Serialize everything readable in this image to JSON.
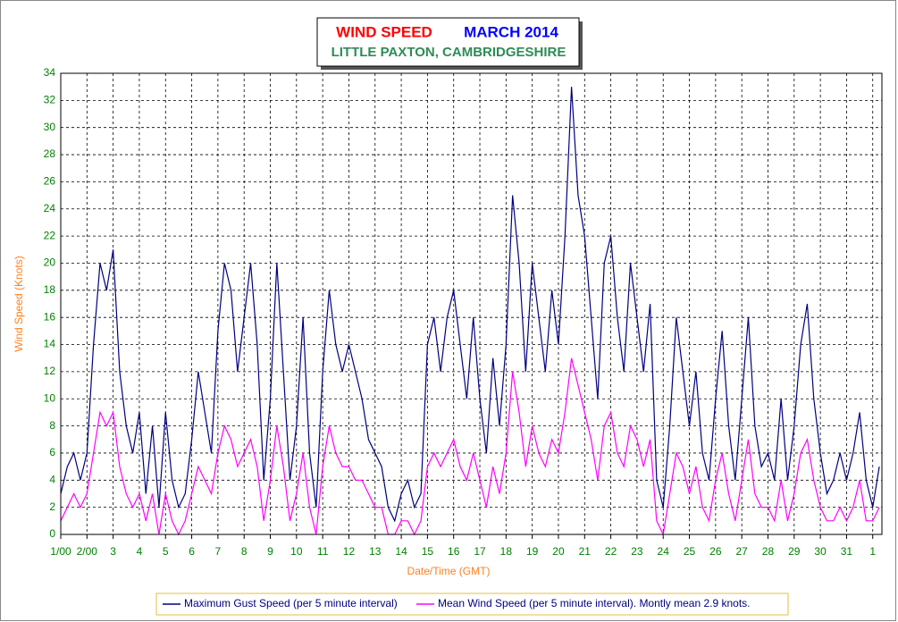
{
  "chart_data": {
    "type": "line",
    "title": "WIND SPEED",
    "title_date": "MARCH 2014",
    "subtitle": "LITTLE PAXTON, CAMBRIDGESHIRE",
    "xlabel": "Date/Time (GMT)",
    "ylabel": "Wind Speed (Knots)",
    "xlim": [
      0,
      31.35
    ],
    "ylim": [
      0,
      34
    ],
    "xticks": [
      {
        "value": 0,
        "label": "1/00"
      },
      {
        "value": 1,
        "label": "2/00"
      },
      {
        "value": 2,
        "label": "3"
      },
      {
        "value": 3,
        "label": "4"
      },
      {
        "value": 4,
        "label": "5"
      },
      {
        "value": 5,
        "label": "6"
      },
      {
        "value": 6,
        "label": "7"
      },
      {
        "value": 7,
        "label": "8"
      },
      {
        "value": 8,
        "label": "9"
      },
      {
        "value": 9,
        "label": "10"
      },
      {
        "value": 10,
        "label": "11"
      },
      {
        "value": 11,
        "label": "12"
      },
      {
        "value": 12,
        "label": "13"
      },
      {
        "value": 13,
        "label": "14"
      },
      {
        "value": 14,
        "label": "15"
      },
      {
        "value": 15,
        "label": "16"
      },
      {
        "value": 16,
        "label": "17"
      },
      {
        "value": 17,
        "label": "18"
      },
      {
        "value": 18,
        "label": "19"
      },
      {
        "value": 19,
        "label": "20"
      },
      {
        "value": 20,
        "label": "21"
      },
      {
        "value": 21,
        "label": "22"
      },
      {
        "value": 22,
        "label": "23"
      },
      {
        "value": 23,
        "label": "24"
      },
      {
        "value": 24,
        "label": "25"
      },
      {
        "value": 25,
        "label": "26"
      },
      {
        "value": 26,
        "label": "27"
      },
      {
        "value": 27,
        "label": "28"
      },
      {
        "value": 28,
        "label": "29"
      },
      {
        "value": 29,
        "label": "30"
      },
      {
        "value": 30,
        "label": "31"
      },
      {
        "value": 31,
        "label": "1"
      }
    ],
    "yticks": [
      0,
      2,
      4,
      6,
      8,
      10,
      12,
      14,
      16,
      18,
      20,
      22,
      24,
      26,
      28,
      30,
      32,
      34
    ],
    "grid": true,
    "x": [
      0,
      0.25,
      0.5,
      0.75,
      1,
      1.25,
      1.5,
      1.75,
      2,
      2.25,
      2.5,
      2.75,
      3,
      3.25,
      3.5,
      3.75,
      4,
      4.25,
      4.5,
      4.75,
      5,
      5.25,
      5.5,
      5.75,
      6,
      6.25,
      6.5,
      6.75,
      7,
      7.25,
      7.5,
      7.75,
      8,
      8.25,
      8.5,
      8.75,
      9,
      9.25,
      9.5,
      9.75,
      10,
      10.25,
      10.5,
      10.75,
      11,
      11.25,
      11.5,
      11.75,
      12,
      12.25,
      12.5,
      12.75,
      13,
      13.25,
      13.5,
      13.75,
      14,
      14.25,
      14.5,
      14.75,
      15,
      15.25,
      15.5,
      15.75,
      16,
      16.25,
      16.5,
      16.75,
      17,
      17.25,
      17.5,
      17.75,
      18,
      18.25,
      18.5,
      18.75,
      19,
      19.25,
      19.5,
      19.75,
      20,
      20.25,
      20.5,
      20.75,
      21,
      21.25,
      21.5,
      21.75,
      22,
      22.25,
      22.5,
      22.75,
      23,
      23.25,
      23.5,
      23.75,
      24,
      24.25,
      24.5,
      24.75,
      25,
      25.25,
      25.5,
      25.75,
      26,
      26.25,
      26.5,
      26.75,
      27,
      27.25,
      27.5,
      27.75,
      28,
      28.25,
      28.5,
      28.75,
      29,
      29.25,
      29.5,
      29.75,
      30,
      30.25,
      30.5,
      30.75,
      31,
      31.25
    ],
    "series": [
      {
        "name": "Maximum Gust Speed (per 5 minute interval)",
        "color": "#000080",
        "values": [
          3,
          5,
          6,
          4,
          6,
          14,
          20,
          18,
          21,
          12,
          8,
          6,
          9,
          3,
          8,
          2,
          9,
          4,
          2,
          3,
          7,
          12,
          9,
          6,
          15,
          20,
          18,
          12,
          16,
          20,
          14,
          4,
          10,
          20,
          12,
          4,
          8,
          16,
          6,
          2,
          12,
          18,
          14,
          12,
          14,
          12,
          10,
          7,
          6,
          5,
          2,
          1,
          3,
          4,
          2,
          3,
          14,
          16,
          12,
          16,
          18,
          14,
          10,
          16,
          10,
          6,
          13,
          8,
          14,
          25,
          20,
          12,
          20,
          16,
          12,
          18,
          14,
          22,
          33,
          25,
          22,
          16,
          10,
          20,
          22,
          16,
          12,
          20,
          16,
          12,
          17,
          4,
          2,
          8,
          16,
          12,
          8,
          12,
          6,
          4,
          10,
          15,
          8,
          4,
          10,
          16,
          8,
          5,
          6,
          4,
          10,
          4,
          8,
          14,
          17,
          10,
          6,
          3,
          4,
          6,
          4,
          6,
          9,
          4,
          2,
          5
        ]
      },
      {
        "name": "Mean Wind Speed (per 5 minute interval). Montly mean 2.9 knots.",
        "color": "#ff00ff",
        "values": [
          1,
          2,
          3,
          2,
          3,
          6,
          9,
          8,
          9,
          5,
          3,
          2,
          3,
          1,
          3,
          0,
          3,
          1,
          0,
          1,
          3,
          5,
          4,
          3,
          6,
          8,
          7,
          5,
          6,
          7,
          5,
          1,
          4,
          8,
          5,
          1,
          3,
          6,
          2,
          0,
          5,
          8,
          6,
          5,
          5,
          4,
          4,
          3,
          2,
          2,
          0,
          0,
          1,
          1,
          0,
          1,
          5,
          6,
          5,
          6,
          7,
          5,
          4,
          6,
          4,
          2,
          5,
          3,
          6,
          12,
          9,
          5,
          8,
          6,
          5,
          7,
          6,
          9,
          13,
          11,
          9,
          7,
          4,
          8,
          9,
          6,
          5,
          8,
          7,
          5,
          7,
          1,
          0,
          3,
          6,
          5,
          3,
          5,
          2,
          1,
          4,
          6,
          3,
          1,
          4,
          7,
          3,
          2,
          2,
          1,
          4,
          1,
          3,
          6,
          7,
          4,
          2,
          1,
          1,
          2,
          1,
          2,
          4,
          1,
          1,
          2
        ]
      }
    ]
  }
}
